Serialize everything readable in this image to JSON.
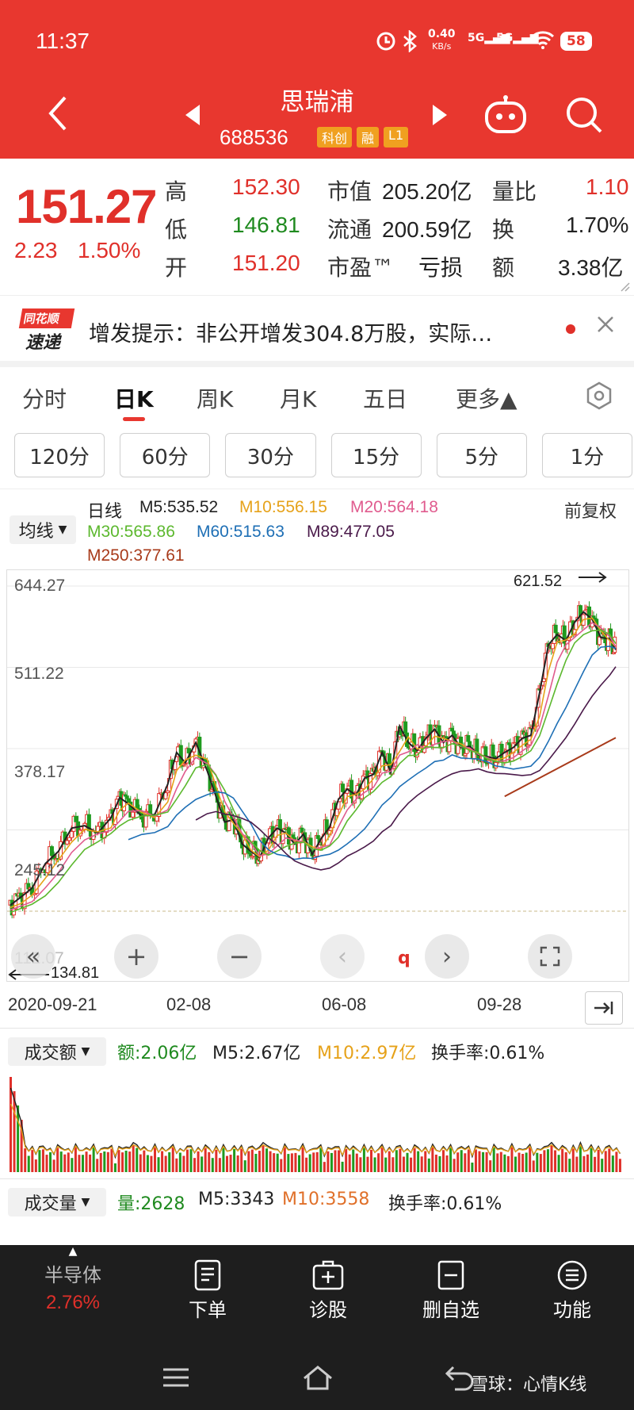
{
  "status": {
    "time": "11:37",
    "net_speed_top": "0.40",
    "net_speed_bottom": "KB/s",
    "signal1": "5G",
    "signal2": "5G",
    "battery": "58"
  },
  "header": {
    "title": "思瑞浦",
    "code": "688536",
    "tags": [
      "科创",
      "融",
      "L1"
    ]
  },
  "quote": {
    "price": "151.27",
    "change": "2.23",
    "change_pct": "1.50%",
    "stats": [
      {
        "label": "高",
        "value": "152.30"
      },
      {
        "label": "低",
        "value": "146.81"
      },
      {
        "label": "开",
        "value": "151.20"
      },
      {
        "label": "市值",
        "value": "205.20亿"
      },
      {
        "label": "流通",
        "value": "200.59亿"
      },
      {
        "label": "市盈™",
        "value": "亏损"
      },
      {
        "label": "量比",
        "value": "1.10"
      },
      {
        "label": "换",
        "value": "1.70%"
      },
      {
        "label": "额",
        "value": "3.38亿"
      }
    ]
  },
  "news": {
    "logo_top": "同花顺",
    "logo_bottom": "速递",
    "text": "增发提示：非公开增发304.8万股，实际…"
  },
  "tabs": [
    "分时",
    "日K",
    "周K",
    "月K",
    "五日",
    "更多▲"
  ],
  "intervals": [
    "120分",
    "60分",
    "30分",
    "15分",
    "5分",
    "1分"
  ],
  "ma_legend": {
    "selector": "均线",
    "label": "日线",
    "adjust": "前复权",
    "items": [
      {
        "text": "M5:535.52",
        "color": "#222222"
      },
      {
        "text": "M10:556.15",
        "color": "#e6a21a"
      },
      {
        "text": "M20:564.18",
        "color": "#e05b8e"
      },
      {
        "text": "M30:565.86",
        "color": "#5cb82e"
      },
      {
        "text": "M60:515.63",
        "color": "#1e6fb5"
      },
      {
        "text": "M89:477.05",
        "color": "#4a1a4a"
      },
      {
        "text": "M250:377.61",
        "color": "#a83a1a"
      }
    ]
  },
  "chart_data": {
    "type": "candlestick",
    "y_ticks": [
      "644.27",
      "511.22",
      "378.17",
      "245.12",
      "112.07"
    ],
    "x_ticks": [
      "2020-09-21",
      "02-08",
      "06-08",
      "09-28"
    ],
    "ylim": [
      112.07,
      644.27
    ],
    "max_label": "621.52",
    "min_label": "134.81",
    "close_path": [
      [
        0,
        122
      ],
      [
        12,
        135
      ],
      [
        25,
        150
      ],
      [
        40,
        190
      ],
      [
        55,
        210
      ],
      [
        70,
        248
      ],
      [
        85,
        252
      ],
      [
        100,
        240
      ],
      [
        115,
        265
      ],
      [
        125,
        298
      ],
      [
        135,
        288
      ],
      [
        150,
        268
      ],
      [
        165,
        270
      ],
      [
        180,
        320
      ],
      [
        190,
        372
      ],
      [
        200,
        355
      ],
      [
        212,
        388
      ],
      [
        225,
        342
      ],
      [
        235,
        300
      ],
      [
        245,
        258
      ],
      [
        255,
        262
      ],
      [
        265,
        222
      ],
      [
        275,
        210
      ],
      [
        285,
        200
      ],
      [
        295,
        232
      ],
      [
        305,
        248
      ],
      [
        315,
        240
      ],
      [
        325,
        222
      ],
      [
        335,
        238
      ],
      [
        345,
        205
      ],
      [
        355,
        230
      ],
      [
        365,
        250
      ],
      [
        375,
        295
      ],
      [
        385,
        312
      ],
      [
        395,
        302
      ],
      [
        405,
        330
      ],
      [
        415,
        336
      ],
      [
        425,
        372
      ],
      [
        435,
        340
      ],
      [
        445,
        415
      ],
      [
        455,
        388
      ],
      [
        465,
        375
      ],
      [
        475,
        395
      ],
      [
        485,
        410
      ],
      [
        495,
        388
      ],
      [
        505,
        400
      ],
      [
        515,
        380
      ],
      [
        525,
        382
      ],
      [
        535,
        368
      ],
      [
        545,
        365
      ],
      [
        555,
        362
      ],
      [
        565,
        372
      ],
      [
        575,
        380
      ],
      [
        585,
        395
      ],
      [
        595,
        400
      ],
      [
        605,
        470
      ],
      [
        615,
        548
      ],
      [
        625,
        565
      ],
      [
        635,
        555
      ],
      [
        645,
        585
      ],
      [
        655,
        602
      ],
      [
        665,
        590
      ],
      [
        675,
        560
      ],
      [
        685,
        558
      ],
      [
        692,
        540
      ]
    ],
    "volume_label": "成交额",
    "amount": "额:2.06亿",
    "amount_m5": "M5:2.67亿",
    "amount_m10": "M10:2.97亿",
    "turnover": "换手率:0.61%",
    "volume_label2": "成交量",
    "volume": "量:2628",
    "volume_m5": "M5:3343",
    "volume_m10": "M10:3558",
    "turnover2": "换手率:0.61%"
  },
  "bottom_nav": {
    "sector_name": "半导体",
    "sector_pct": "2.76%",
    "items": [
      "下单",
      "诊股",
      "删自选",
      "功能"
    ],
    "watermark": "雪球：心情K线"
  },
  "colors": {
    "header": "#e8372f",
    "up": "#e0302a",
    "down": "#1f8a1f",
    "nav": "#1e1e1e"
  }
}
